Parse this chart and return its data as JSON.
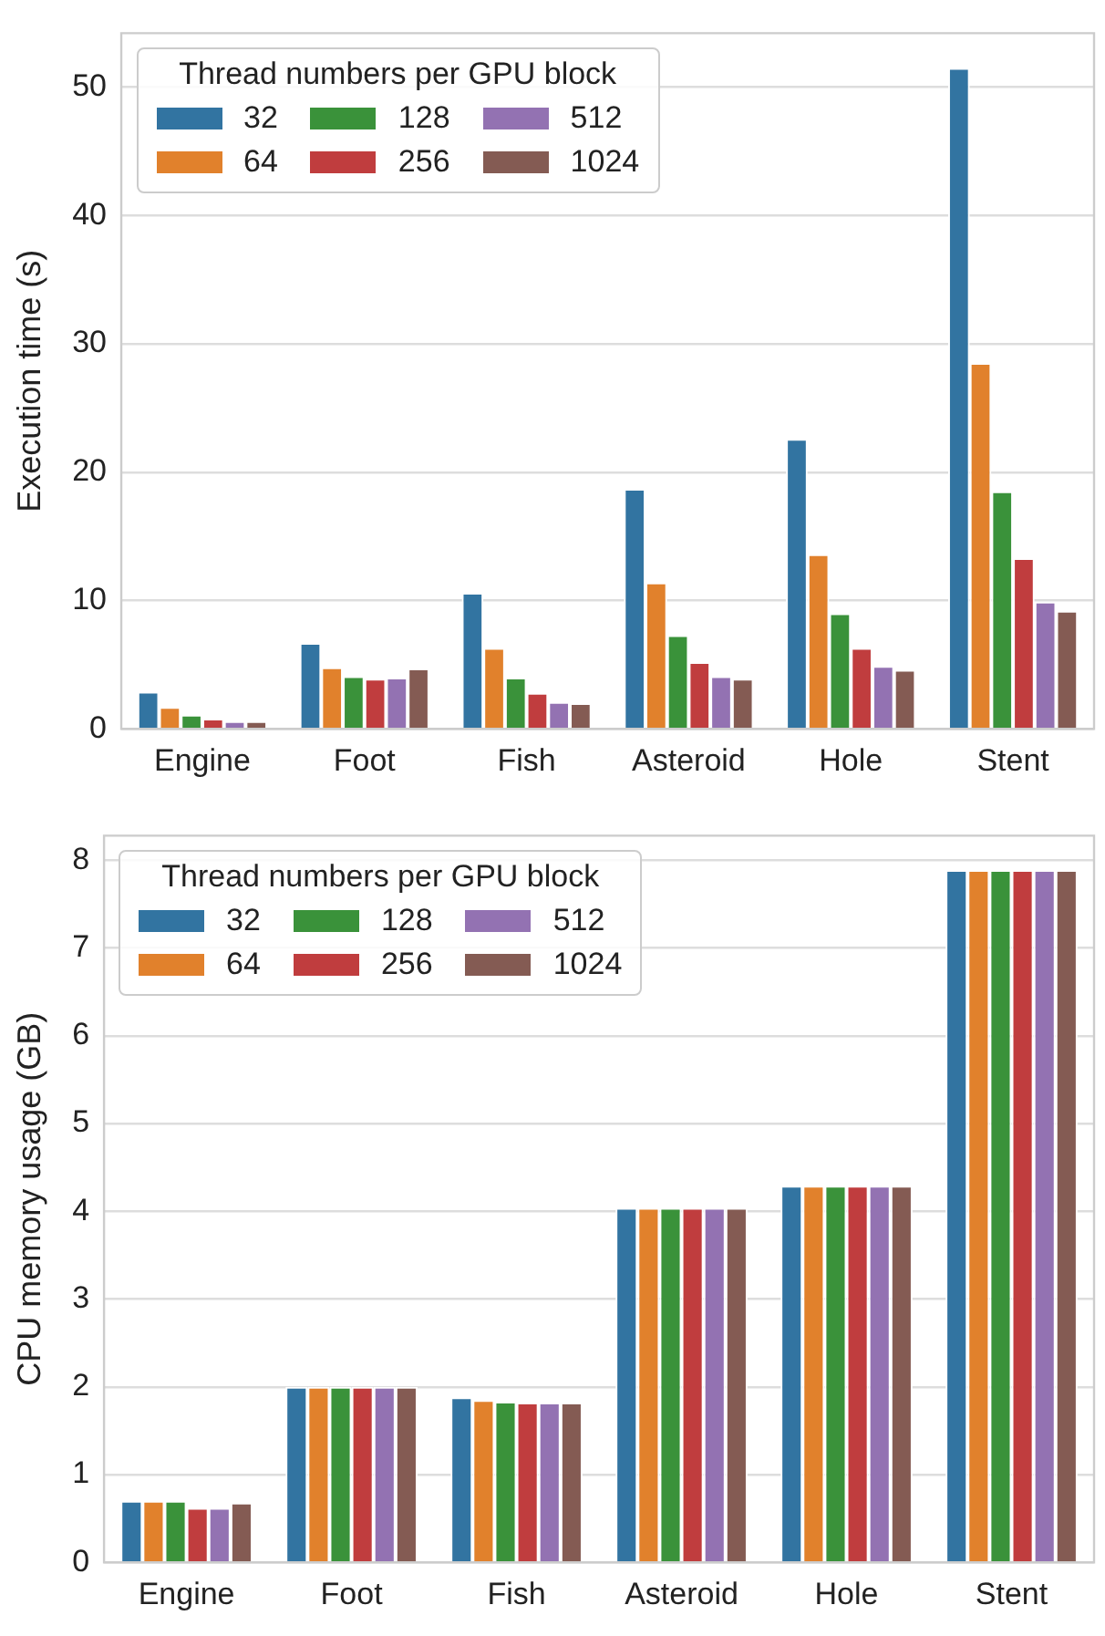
{
  "chart_data": [
    {
      "type": "bar",
      "ylabel": "Execution time (s)",
      "legend_title": "Thread numbers per GPU block",
      "categories": [
        "Engine",
        "Foot",
        "Fish",
        "Asteroid",
        "Hole",
        "Stent"
      ],
      "series": [
        {
          "name": "32",
          "color": "#3274a1",
          "values": [
            2.9,
            6.7,
            10.6,
            18.7,
            22.6,
            51.5
          ]
        },
        {
          "name": "64",
          "color": "#e1812c",
          "values": [
            1.7,
            4.8,
            6.3,
            11.4,
            13.6,
            28.5
          ]
        },
        {
          "name": "128",
          "color": "#3a923a",
          "values": [
            1.1,
            4.1,
            4.0,
            7.3,
            9.0,
            18.5
          ]
        },
        {
          "name": "256",
          "color": "#c03d3e",
          "values": [
            0.8,
            3.9,
            2.8,
            5.2,
            6.3,
            13.3
          ]
        },
        {
          "name": "512",
          "color": "#9372b2",
          "values": [
            0.6,
            4.0,
            2.1,
            4.1,
            4.9,
            9.9
          ]
        },
        {
          "name": "1024",
          "color": "#845b53",
          "values": [
            0.6,
            4.7,
            2.0,
            3.9,
            4.6,
            9.2
          ]
        }
      ],
      "ylim": [
        0,
        54.2
      ],
      "yticks": [
        0,
        10,
        20,
        30,
        40,
        50
      ],
      "grid": "y",
      "legend": "top left"
    },
    {
      "type": "bar",
      "ylabel": "CPU memory usage (GB)",
      "legend_title": "Thread numbers per GPU block",
      "categories": [
        "Engine",
        "Foot",
        "Fish",
        "Asteroid",
        "Hole",
        "Stent"
      ],
      "series": [
        {
          "name": "32",
          "color": "#3274a1",
          "values": [
            0.7,
            2.0,
            1.88,
            4.04,
            4.29,
            7.89
          ]
        },
        {
          "name": "64",
          "color": "#e1812c",
          "values": [
            0.7,
            2.0,
            1.85,
            4.04,
            4.29,
            7.89
          ]
        },
        {
          "name": "128",
          "color": "#3a923a",
          "values": [
            0.7,
            2.0,
            1.83,
            4.04,
            4.29,
            7.89
          ]
        },
        {
          "name": "256",
          "color": "#c03d3e",
          "values": [
            0.62,
            2.0,
            1.82,
            4.04,
            4.29,
            7.89
          ]
        },
        {
          "name": "512",
          "color": "#9372b2",
          "values": [
            0.62,
            2.0,
            1.82,
            4.04,
            4.29,
            7.89
          ]
        },
        {
          "name": "1024",
          "color": "#845b53",
          "values": [
            0.68,
            2.0,
            1.82,
            4.04,
            4.29,
            7.89
          ]
        }
      ],
      "ylim": [
        0,
        8.28
      ],
      "yticks": [
        0,
        1,
        2,
        3,
        4,
        5,
        6,
        7,
        8
      ],
      "grid": "y",
      "legend": "top left"
    }
  ]
}
